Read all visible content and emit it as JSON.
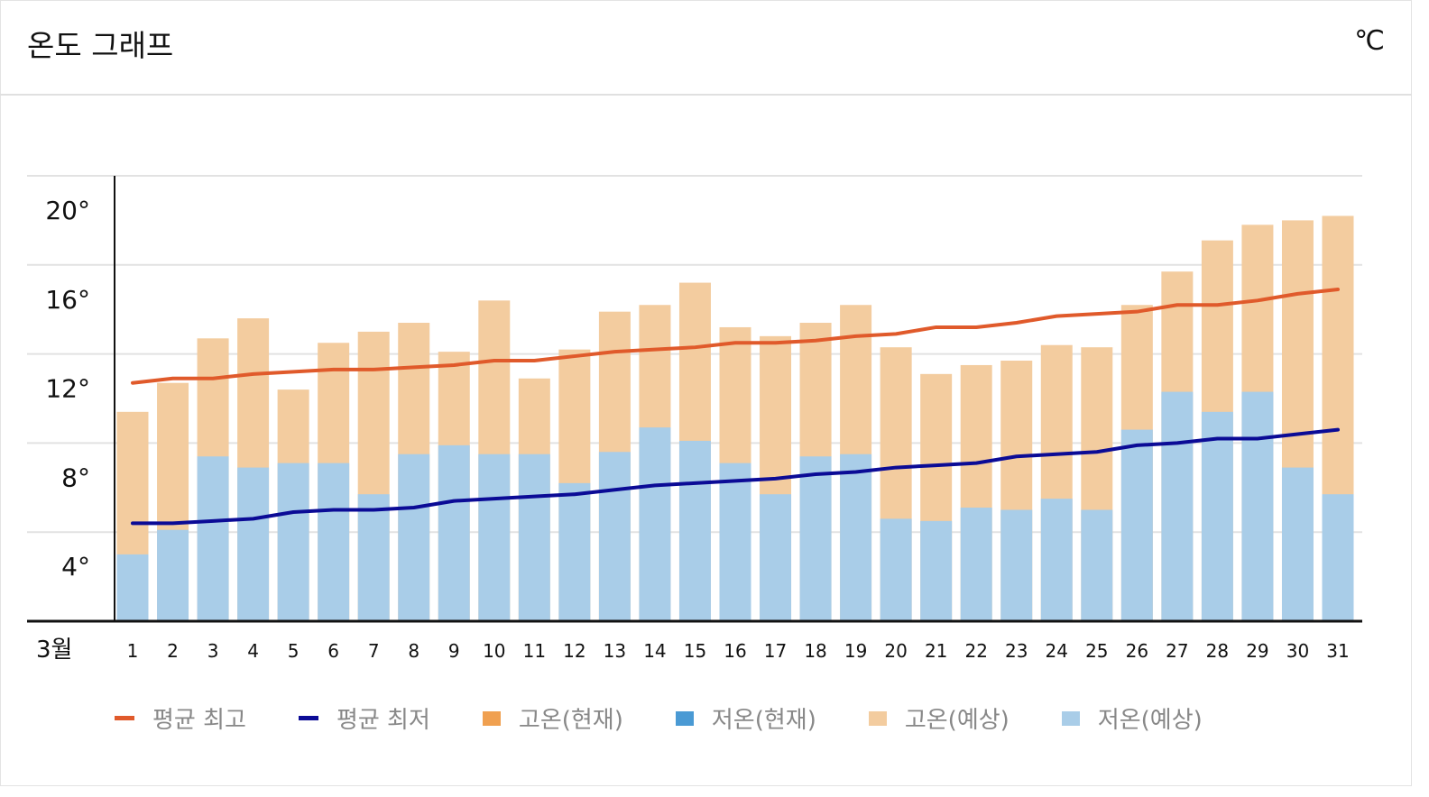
{
  "header": {
    "title": "온도 그래프",
    "unit": "℃"
  },
  "colors": {
    "avg_high": "#e05a2b",
    "avg_low": "#0b0b96",
    "high_current": "#f0a050",
    "low_current": "#4a9ad4",
    "high_forecast": "#f3cc9f",
    "low_forecast": "#a9cde8",
    "grid": "#e2e2e2",
    "axis": "#111111"
  },
  "chart_data": {
    "type": "bar",
    "title": "온도 그래프",
    "ylabel": "℃",
    "month_label": "3월",
    "ylim": [
      0,
      20
    ],
    "yticks": [
      4,
      8,
      12,
      16,
      20
    ],
    "ytick_labels": [
      "4°",
      "8°",
      "12°",
      "16°",
      "20°"
    ],
    "grid": true,
    "legend_position": "bottom",
    "categories": [
      "1",
      "2",
      "3",
      "4",
      "5",
      "6",
      "7",
      "8",
      "9",
      "10",
      "11",
      "12",
      "13",
      "14",
      "15",
      "16",
      "17",
      "18",
      "19",
      "20",
      "21",
      "22",
      "23",
      "24",
      "25",
      "26",
      "27",
      "28",
      "29",
      "30",
      "31"
    ],
    "series": [
      {
        "name": "고온(예상)",
        "type": "bar",
        "values": [
          9.4,
          10.7,
          12.7,
          13.6,
          10.4,
          12.5,
          13.0,
          13.4,
          12.1,
          14.4,
          10.9,
          12.2,
          13.9,
          14.2,
          15.2,
          13.2,
          12.8,
          13.4,
          14.2,
          12.3,
          11.1,
          11.5,
          11.7,
          12.4,
          12.3,
          14.2,
          15.7,
          17.1,
          17.8,
          18.0,
          18.2
        ]
      },
      {
        "name": "저온(예상)",
        "type": "bar",
        "values": [
          3.0,
          4.1,
          7.4,
          6.9,
          7.1,
          7.1,
          5.7,
          7.5,
          7.9,
          7.5,
          7.5,
          6.2,
          7.6,
          8.7,
          8.1,
          7.1,
          5.7,
          7.4,
          7.5,
          4.6,
          4.5,
          5.1,
          5.0,
          5.5,
          5.0,
          8.6,
          10.3,
          9.4,
          10.3,
          6.9,
          5.7
        ]
      },
      {
        "name": "평균 최고",
        "type": "line",
        "values": [
          10.7,
          10.9,
          10.9,
          11.1,
          11.2,
          11.3,
          11.3,
          11.4,
          11.5,
          11.7,
          11.7,
          11.9,
          12.1,
          12.2,
          12.3,
          12.5,
          12.5,
          12.6,
          12.8,
          12.9,
          13.2,
          13.2,
          13.4,
          13.7,
          13.8,
          13.9,
          14.2,
          14.2,
          14.4,
          14.7,
          14.9
        ]
      },
      {
        "name": "평균 최저",
        "type": "line",
        "values": [
          4.4,
          4.4,
          4.5,
          4.6,
          4.9,
          5.0,
          5.0,
          5.1,
          5.4,
          5.5,
          5.6,
          5.7,
          5.9,
          6.1,
          6.2,
          6.3,
          6.4,
          6.6,
          6.7,
          6.9,
          7.0,
          7.1,
          7.4,
          7.5,
          7.6,
          7.9,
          8.0,
          8.2,
          8.2,
          8.4,
          8.6
        ]
      }
    ],
    "legend": [
      "평균 최고",
      "평균 최저",
      "고온(현재)",
      "저온(현재)",
      "고온(예상)",
      "저온(예상)"
    ]
  }
}
